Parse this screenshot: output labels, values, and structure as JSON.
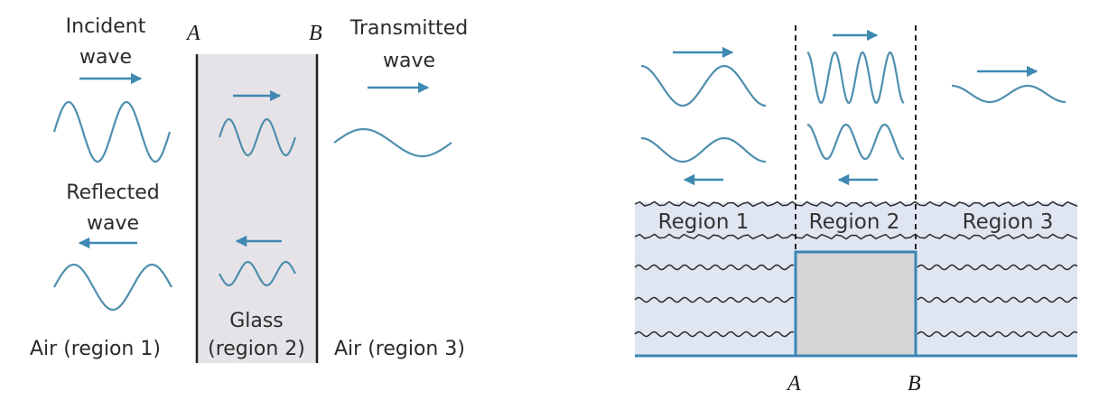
{
  "left_panel": {
    "boundary_a": "A",
    "boundary_b": "B",
    "incident": [
      "Incident",
      "wave"
    ],
    "transmitted": [
      "Transmitted",
      "wave"
    ],
    "reflected": [
      "Reflected",
      "wave"
    ],
    "glass": [
      "Glass",
      "(region 2)"
    ],
    "region_1": "Air (region 1)",
    "region_3": "Air (region 3)"
  },
  "right_panel": {
    "region_1": "Region 1",
    "region_2": "Region 2",
    "region_3": "Region 3",
    "boundary_a": "A",
    "boundary_b": "B"
  },
  "colors": {
    "wave": "#4f8fae",
    "arrow": "#3f89b2",
    "glass_fill": "#e6e3e8",
    "water_fill": "#dfe6f2",
    "step_fill": "#d6d6d9",
    "step_line": "#3b86b4"
  }
}
